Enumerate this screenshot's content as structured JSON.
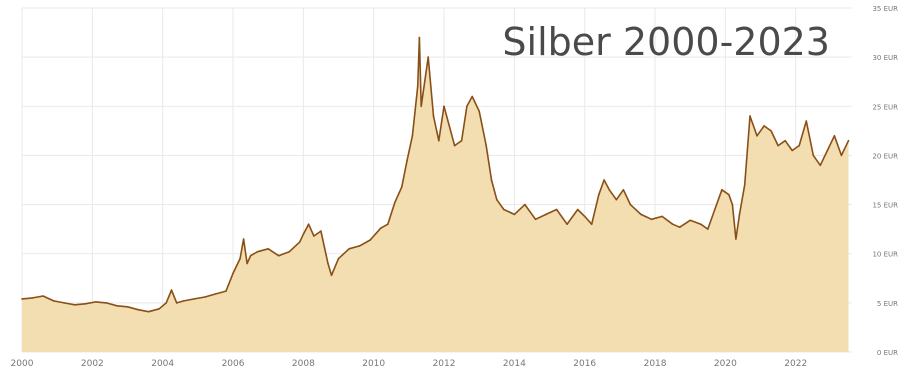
{
  "chart_data": {
    "type": "area",
    "title": "Silber 2000-2023",
    "xlabel": "",
    "ylabel": "",
    "xlim": [
      2000,
      2023.6
    ],
    "ylim": [
      0,
      35
    ],
    "x_ticks": [
      2000,
      2002,
      2004,
      2006,
      2008,
      2010,
      2012,
      2014,
      2016,
      2018,
      2020,
      2022
    ],
    "y_ticks": [
      0,
      5,
      10,
      15,
      20,
      25,
      30,
      35
    ],
    "y_tick_labels": [
      "0 EUR",
      "5 EUR",
      "10 EUR",
      "15 EUR",
      "20 EUR",
      "25 EUR",
      "30 EUR",
      "35 EUR"
    ],
    "grid": true,
    "colors": {
      "fill": "#f2deb0",
      "line": "#8a4f16",
      "grid": "#e9e9e9"
    },
    "series": [
      {
        "x": [
          2000.0,
          2000.3,
          2000.6,
          2000.9,
          2001.2,
          2001.5,
          2001.8,
          2002.1,
          2002.4,
          2002.7,
          2003.0,
          2003.3,
          2003.6,
          2003.9,
          2004.1,
          2004.25,
          2004.4,
          2004.6,
          2004.9,
          2005.2,
          2005.5,
          2005.8,
          2006.0,
          2006.2,
          2006.3,
          2006.4,
          2006.5,
          2006.7,
          2007.0,
          2007.3,
          2007.6,
          2007.9,
          2008.0,
          2008.15,
          2008.3,
          2008.5,
          2008.7,
          2008.8,
          2009.0,
          2009.3,
          2009.6,
          2009.9,
          2010.2,
          2010.4,
          2010.6,
          2010.8,
          2010.95,
          2011.1,
          2011.25,
          2011.3,
          2011.35,
          2011.45,
          2011.55,
          2011.7,
          2011.85,
          2012.0,
          2012.15,
          2012.3,
          2012.5,
          2012.65,
          2012.8,
          2013.0,
          2013.2,
          2013.35,
          2013.5,
          2013.7,
          2014.0,
          2014.3,
          2014.6,
          2014.9,
          2015.2,
          2015.5,
          2015.8,
          2016.0,
          2016.2,
          2016.4,
          2016.55,
          2016.7,
          2016.9,
          2017.1,
          2017.3,
          2017.6,
          2017.9,
          2018.2,
          2018.5,
          2018.7,
          2019.0,
          2019.3,
          2019.5,
          2019.7,
          2019.9,
          2020.1,
          2020.2,
          2020.3,
          2020.4,
          2020.55,
          2020.7,
          2020.9,
          2021.1,
          2021.3,
          2021.5,
          2021.7,
          2021.9,
          2022.1,
          2022.3,
          2022.5,
          2022.7,
          2022.9,
          2023.1,
          2023.3,
          2023.5
        ],
        "y": [
          5.4,
          5.5,
          5.7,
          5.2,
          5.0,
          4.8,
          4.9,
          5.1,
          5.0,
          4.7,
          4.6,
          4.3,
          4.1,
          4.4,
          5.0,
          6.3,
          5.0,
          5.2,
          5.4,
          5.6,
          5.9,
          6.2,
          8.0,
          9.5,
          11.5,
          9.0,
          9.8,
          10.2,
          10.5,
          9.8,
          10.2,
          11.2,
          12.0,
          13.0,
          11.8,
          12.3,
          9.0,
          7.8,
          9.5,
          10.5,
          10.8,
          11.4,
          12.6,
          13.0,
          15.2,
          16.8,
          19.5,
          22.0,
          27.0,
          32.0,
          25.0,
          27.5,
          30.0,
          24.0,
          21.5,
          25.0,
          23.0,
          21.0,
          21.5,
          25.0,
          26.0,
          24.5,
          21.0,
          17.5,
          15.5,
          14.5,
          14.0,
          15.0,
          13.5,
          14.0,
          14.5,
          13.0,
          14.5,
          13.8,
          13.0,
          16.0,
          17.5,
          16.5,
          15.5,
          16.5,
          15.0,
          14.0,
          13.5,
          13.8,
          13.0,
          12.7,
          13.4,
          13.0,
          12.5,
          14.5,
          16.5,
          16.0,
          15.0,
          11.5,
          14.0,
          17.0,
          24.0,
          22.0,
          23.0,
          22.5,
          21.0,
          21.5,
          20.5,
          21.0,
          23.5,
          20.0,
          19.0,
          20.5,
          22.0,
          20.0,
          21.5
        ]
      }
    ]
  }
}
